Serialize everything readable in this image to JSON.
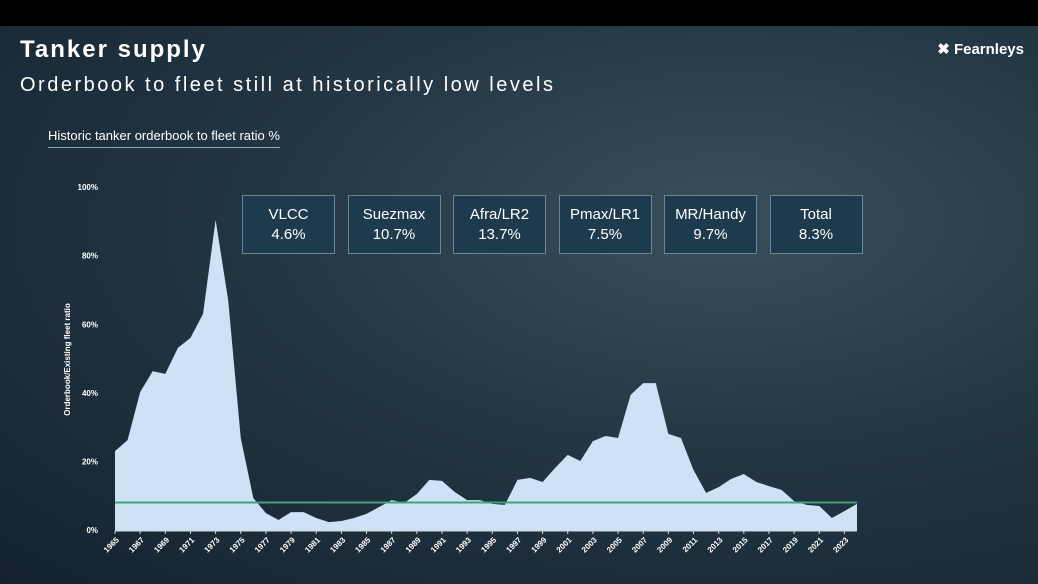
{
  "header": {
    "title": "Tanker supply",
    "subtitle": "Orderbook to fleet still at historically low levels",
    "logo": "Fearnleys"
  },
  "stat_boxes": [
    {
      "label": "VLCC",
      "value": "4.6%"
    },
    {
      "label": "Suezmax",
      "value": "10.7%"
    },
    {
      "label": "Afra/LR2",
      "value": "13.7%"
    },
    {
      "label": "Pmax/LR1",
      "value": "7.5%"
    },
    {
      "label": "MR/Handy",
      "value": "9.7%"
    },
    {
      "label": "Total",
      "value": "8.3%"
    }
  ],
  "chart_data": {
    "type": "area",
    "title": "Historic tanker orderbook to fleet ratio %",
    "y_label": "Orderbook/Existing fleet ratio",
    "x": [
      1965,
      1966,
      1967,
      1968,
      1969,
      1970,
      1971,
      1972,
      1973,
      1974,
      1975,
      1976,
      1977,
      1978,
      1979,
      1980,
      1981,
      1982,
      1983,
      1984,
      1985,
      1986,
      1987,
      1988,
      1989,
      1990,
      1991,
      1992,
      1993,
      1994,
      1995,
      1996,
      1997,
      1998,
      1999,
      2000,
      2001,
      2002,
      2003,
      2004,
      2005,
      2006,
      2007,
      2008,
      2009,
      2010,
      2011,
      2012,
      2013,
      2014,
      2015,
      2016,
      2017,
      2018,
      2019,
      2020,
      2021,
      2022,
      2023,
      2024
    ],
    "values": [
      23.3,
      26.5,
      40.5,
      46.6,
      45.8,
      53.4,
      56.3,
      63.3,
      90.7,
      67.3,
      27.1,
      9.6,
      5.2,
      3.2,
      5.5,
      5.5,
      3.8,
      2.6,
      2.9,
      3.8,
      5.0,
      7.0,
      9.0,
      8.2,
      10.8,
      14.9,
      14.6,
      11.4,
      9.0,
      9.0,
      7.9,
      7.6,
      14.9,
      15.5,
      14.3,
      18.4,
      22.2,
      20.4,
      26.2,
      27.7,
      27.1,
      39.7,
      43.1,
      43.1,
      28.3,
      27.1,
      17.8,
      11.1,
      12.8,
      15.2,
      16.6,
      14.3,
      13.1,
      12.0,
      8.7,
      7.6,
      7.3,
      3.8,
      5.8,
      7.9
    ],
    "color": "#cfe2f5",
    "reference_line": {
      "value": 8.3,
      "color": "#3fa27a"
    },
    "xlim": [
      1965,
      2024
    ],
    "xticks": [
      1965,
      1967,
      1969,
      1971,
      1973,
      1975,
      1977,
      1979,
      1981,
      1983,
      1985,
      1987,
      1989,
      1991,
      1993,
      1995,
      1997,
      1999,
      2001,
      2003,
      2005,
      2007,
      2009,
      2011,
      2013,
      2015,
      2017,
      2019,
      2021,
      2023
    ],
    "ylim": [
      0,
      100
    ],
    "yticks": [
      {
        "value": 0,
        "label": "0%"
      },
      {
        "value": 20,
        "label": "20%"
      },
      {
        "value": 40,
        "label": "40%"
      },
      {
        "value": 60,
        "label": "60%"
      },
      {
        "value": 80,
        "label": "80%"
      },
      {
        "value": 100,
        "label": "100%"
      }
    ]
  }
}
